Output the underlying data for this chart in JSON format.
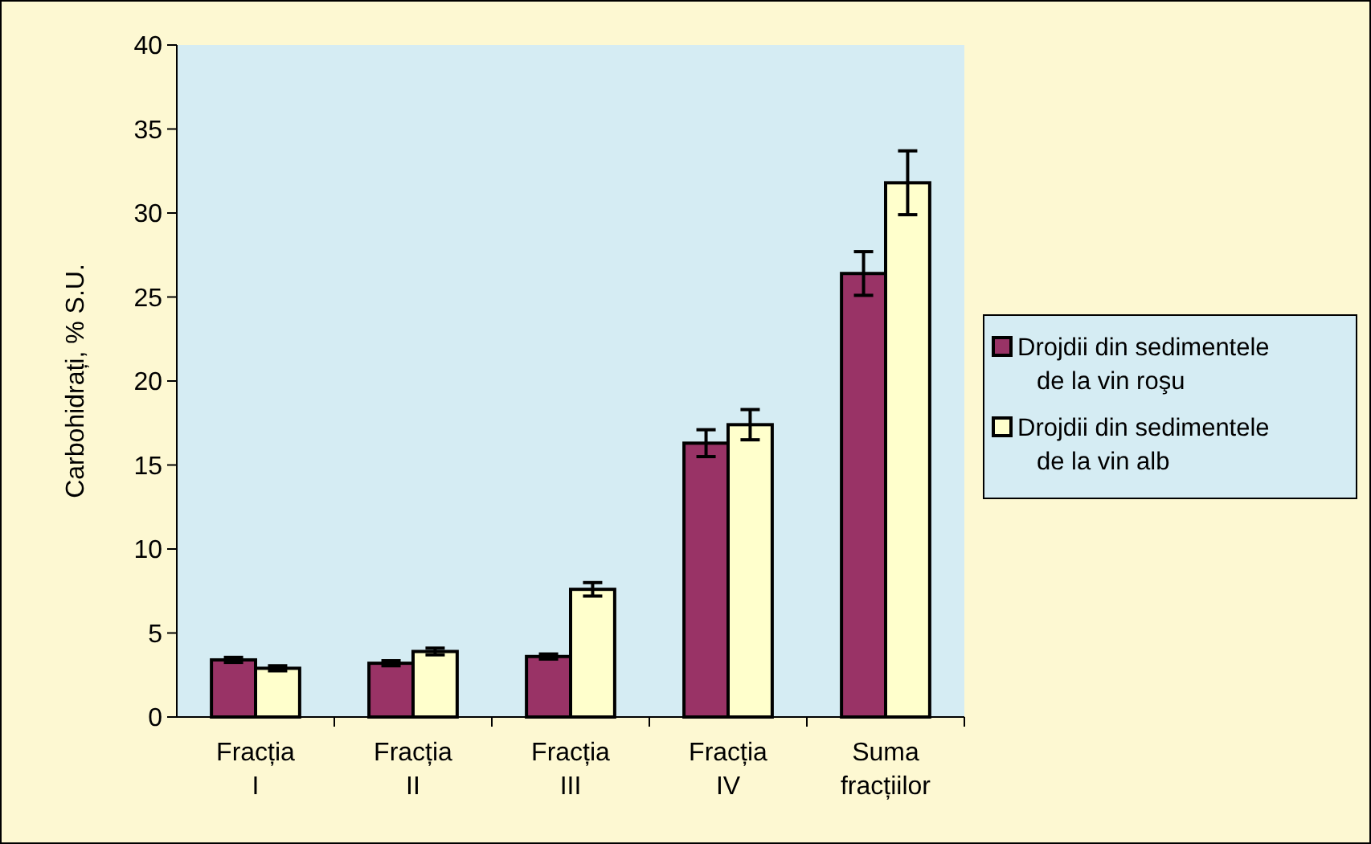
{
  "chart_data": {
    "type": "bar",
    "ylabel": "Carbohidrați, % S.U.",
    "categories": [
      "Fracția I",
      "Fracția II",
      "Fracția III",
      "Fracția IV",
      "Suma fracțiilor"
    ],
    "series": [
      {
        "name": "Drojdii din sedimentele de la vin roşu",
        "color": "#993366",
        "values": [
          3.4,
          3.2,
          3.6,
          16.3,
          26.4
        ],
        "errors": [
          0.15,
          0.15,
          0.15,
          0.8,
          1.3
        ]
      },
      {
        "name": "Drojdii din sedimentele de la vin alb",
        "color": "#ffffcc",
        "values": [
          2.9,
          3.9,
          7.6,
          17.4,
          31.8
        ],
        "errors": [
          0.15,
          0.2,
          0.4,
          0.9,
          1.9
        ]
      }
    ],
    "ylim": [
      0,
      40
    ],
    "yticks": [
      0,
      5,
      10,
      15,
      20,
      25,
      30,
      35,
      40
    ],
    "grid": false,
    "legend": "right"
  }
}
